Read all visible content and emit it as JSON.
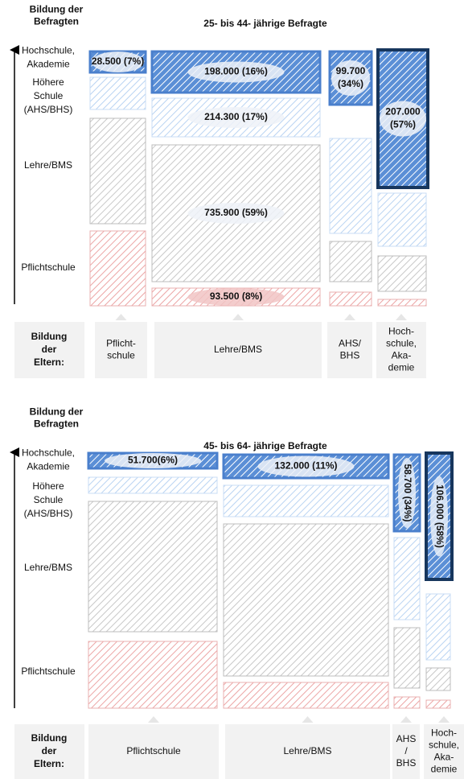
{
  "panels": [
    {
      "header": [
        "Bildung der",
        "Befragten"
      ],
      "title": "25- bis 44- jährige Befragte",
      "row_labels": [
        [
          "Hochschule,",
          "Akademie"
        ],
        [
          "Höhere",
          "Schule",
          "(AHS/BHS)"
        ],
        [
          "Lehre/BMS"
        ],
        [
          "Pflichtschule"
        ]
      ],
      "parents_label": [
        "Bildung",
        "der",
        "Eltern:"
      ],
      "column_labels": [
        [
          "Pflicht-",
          "schule"
        ],
        [
          "Lehre/BMS"
        ],
        [
          "AHS/",
          "BHS"
        ],
        [
          "Hoch-",
          "schule,",
          "Aka-",
          "demie"
        ]
      ],
      "cell_labels": [
        [
          "28.500 (7%)"
        ],
        [
          "198.000 (16%)"
        ],
        [
          "214.300 (17%)"
        ],
        [
          "735.900 (59%)"
        ],
        [
          "93.500 (8%)"
        ],
        [
          "99.700",
          "(34%)"
        ],
        [
          "207.000",
          "(57%)"
        ]
      ]
    },
    {
      "header": [
        "Bildung der",
        "Befragten"
      ],
      "title": "45- bis 64- jährige Befragte",
      "row_labels": [
        [
          "Hochschule,",
          "Akademie"
        ],
        [
          "Höhere",
          "Schule",
          "(AHS/BHS)"
        ],
        [
          "Lehre/BMS"
        ],
        [
          "Pflichtschule"
        ]
      ],
      "parents_label": [
        "Bildung",
        "der",
        "Eltern:"
      ],
      "column_labels": [
        [
          "Pflichtschule"
        ],
        [
          "Lehre/BMS"
        ],
        [
          "AHS",
          "/",
          "BHS"
        ],
        [
          "Hoch-",
          "schule,",
          "Aka-",
          "demie"
        ]
      ],
      "cell_labels": [
        [
          "51.700(6%)"
        ],
        [
          "132.000 (11%)"
        ],
        [
          "58.700 (34%)"
        ],
        [
          "106.000 (58%)"
        ]
      ]
    }
  ]
}
